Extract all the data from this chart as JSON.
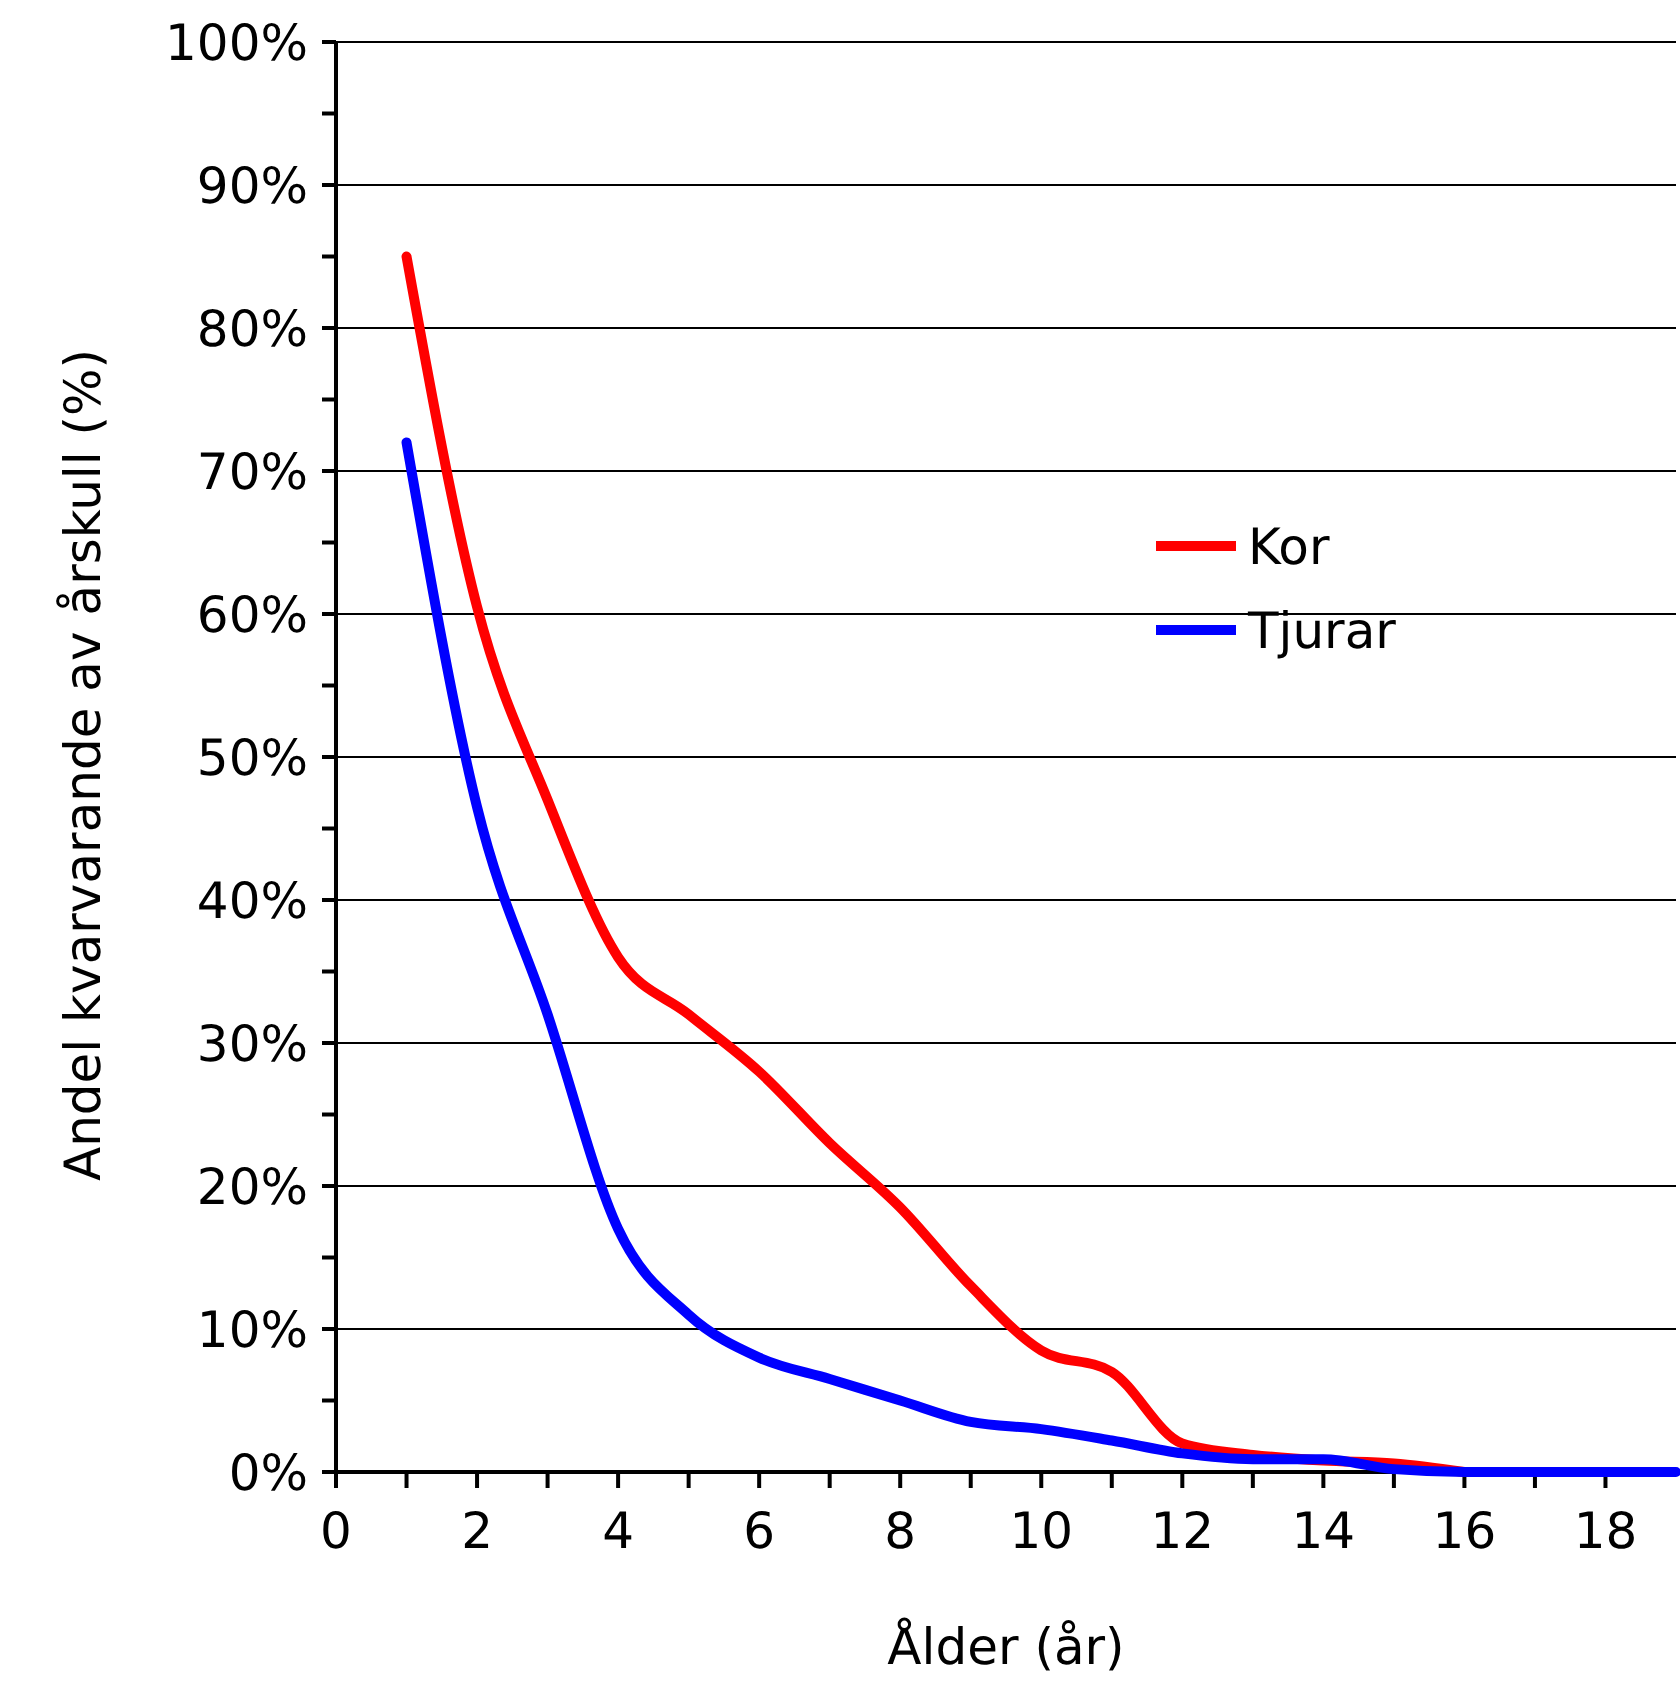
{
  "chart_data": {
    "type": "line",
    "xlabel": "Ålder (år)",
    "ylabel": "Andel kvarvarande av årskull (%)",
    "x": [
      1,
      2,
      3,
      4,
      5,
      6,
      7,
      8,
      9,
      10,
      11,
      12,
      13,
      14,
      15,
      16,
      17,
      18,
      19
    ],
    "series": [
      {
        "name": "Kor",
        "color": "#ff0000",
        "values": [
          85,
          60.5,
          47,
          36,
          32,
          28,
          23,
          18.5,
          13,
          8.5,
          7,
          2,
          1.2,
          0.8,
          0.6,
          0,
          null,
          null,
          null
        ]
      },
      {
        "name": "Tjurar",
        "color": "#0000ff",
        "values": [
          72,
          46.5,
          32,
          17,
          11,
          8,
          6.5,
          5,
          3.5,
          3,
          2.2,
          1.3,
          0.9,
          0.9,
          0.2,
          0,
          0,
          0,
          0
        ]
      }
    ],
    "xlim": [
      0,
      19
    ],
    "xticks": [
      0,
      {
        "value": 1,
        "label": null
      },
      2,
      {
        "value": 3,
        "label": null
      },
      4,
      {
        "value": 5,
        "label": null
      },
      6,
      {
        "value": 7,
        "label": null
      },
      8,
      {
        "value": 9,
        "label": null
      },
      10,
      {
        "value": 11,
        "label": null
      },
      12,
      {
        "value": 13,
        "label": null
      },
      14,
      {
        "value": 15,
        "label": null
      },
      16,
      {
        "value": 17,
        "label": null
      },
      18
    ],
    "ylim": [
      0,
      100
    ],
    "yticks": [
      {
        "value": 0,
        "label": "0%"
      },
      {
        "value": 5,
        "label": null
      },
      {
        "value": 10,
        "label": "10%"
      },
      {
        "value": 15,
        "label": null
      },
      {
        "value": 20,
        "label": "20%"
      },
      {
        "value": 25,
        "label": null
      },
      {
        "value": 30,
        "label": "30%"
      },
      {
        "value": 35,
        "label": null
      },
      {
        "value": 40,
        "label": "40%"
      },
      {
        "value": 45,
        "label": null
      },
      {
        "value": 50,
        "label": "50%"
      },
      {
        "value": 55,
        "label": null
      },
      {
        "value": 60,
        "label": "60%"
      },
      {
        "value": 65,
        "label": null
      },
      {
        "value": 70,
        "label": "70%"
      },
      {
        "value": 75,
        "label": null
      },
      {
        "value": 80,
        "label": "80%"
      },
      {
        "value": 85,
        "label": null
      },
      {
        "value": 90,
        "label": "90%"
      },
      {
        "value": 95,
        "label": null
      },
      {
        "value": 100,
        "label": "100%"
      }
    ],
    "grid": "y",
    "legend": "right",
    "line_style": "solid"
  }
}
